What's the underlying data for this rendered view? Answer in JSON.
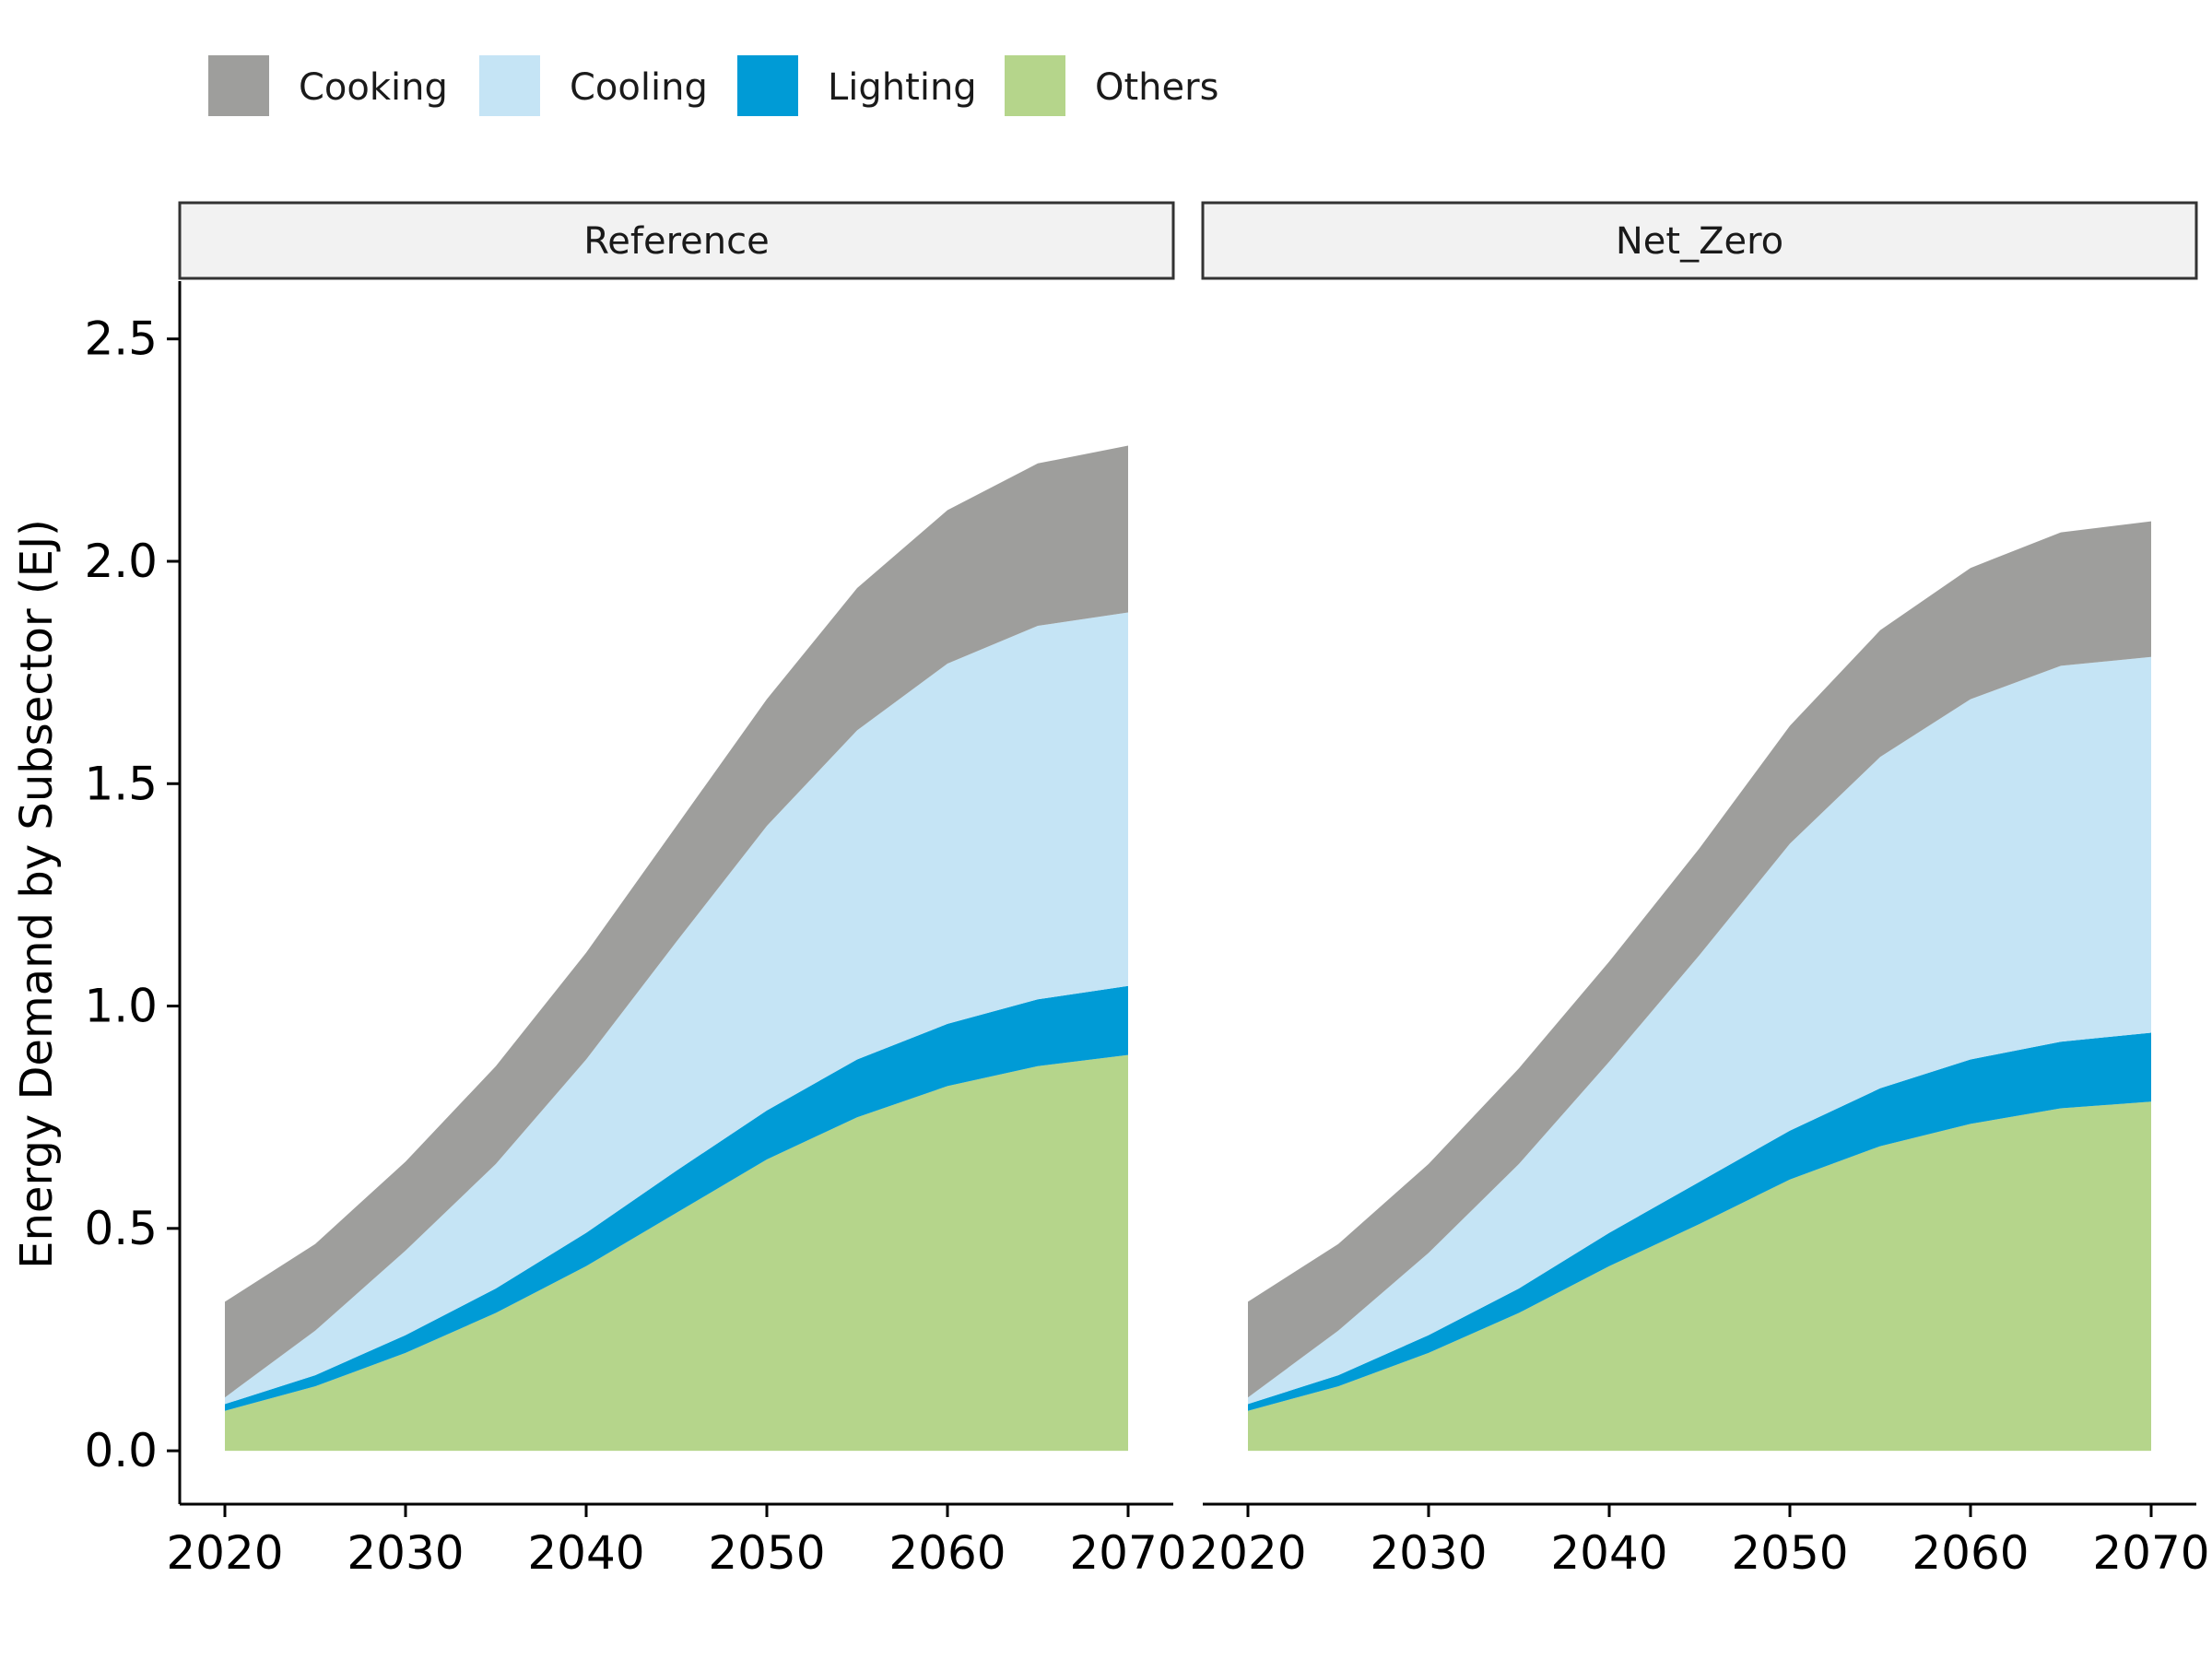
{
  "chart_data": {
    "type": "area",
    "stacked": true,
    "facets": [
      "Reference",
      "Net_Zero"
    ],
    "ylabel": "Energy Demand by Subsector (EJ)",
    "xlabel": "",
    "xlim": [
      2017.5,
      2072.5
    ],
    "ylim": [
      -0.12,
      2.63
    ],
    "x_ticks": [
      2020,
      2030,
      2040,
      2050,
      2060,
      2070
    ],
    "y_ticks": [
      0.0,
      0.5,
      1.0,
      1.5,
      2.0,
      2.5
    ],
    "y_tick_labels": [
      "0.0",
      "0.5",
      "1.0",
      "1.5",
      "2.0",
      "2.5"
    ],
    "grid": false,
    "legend_position": "top-left",
    "legend": [
      "Cooking",
      "Cooling",
      "Lighting",
      "Others"
    ],
    "colors": {
      "Cooking": "#9e9e9c",
      "Cooling": "#c5e4f5",
      "Lighting": "#009bd6",
      "Others": "#b5d58b"
    },
    "x": [
      2020,
      2025,
      2030,
      2035,
      2040,
      2045,
      2050,
      2055,
      2060,
      2065,
      2070
    ],
    "panels": [
      {
        "facet": "Reference",
        "series": [
          {
            "name": "Others",
            "values": [
              0.09,
              0.145,
              0.22,
              0.31,
              0.415,
              0.535,
              0.655,
              0.75,
              0.82,
              0.865,
              0.89
            ]
          },
          {
            "name": "Lighting",
            "values": [
              0.015,
              0.025,
              0.04,
              0.055,
              0.075,
              0.095,
              0.11,
              0.13,
              0.14,
              0.15,
              0.155
            ]
          },
          {
            "name": "Cooling",
            "values": [
              0.015,
              0.1,
              0.19,
              0.28,
              0.39,
              0.515,
              0.64,
              0.74,
              0.81,
              0.84,
              0.84
            ]
          },
          {
            "name": "Cooking",
            "values": [
              0.215,
              0.195,
              0.2,
              0.22,
              0.24,
              0.26,
              0.285,
              0.32,
              0.345,
              0.365,
              0.375
            ]
          }
        ]
      },
      {
        "facet": "Net_Zero",
        "series": [
          {
            "name": "Others",
            "values": [
              0.09,
              0.145,
              0.22,
              0.31,
              0.415,
              0.51,
              0.61,
              0.685,
              0.735,
              0.77,
              0.785
            ]
          },
          {
            "name": "Lighting",
            "values": [
              0.015,
              0.025,
              0.04,
              0.055,
              0.075,
              0.095,
              0.11,
              0.13,
              0.145,
              0.15,
              0.155
            ]
          },
          {
            "name": "Cooling",
            "values": [
              0.015,
              0.1,
              0.185,
              0.28,
              0.385,
              0.51,
              0.645,
              0.745,
              0.81,
              0.845,
              0.845
            ]
          },
          {
            "name": "Cooking",
            "values": [
              0.215,
              0.195,
              0.2,
              0.215,
              0.225,
              0.24,
              0.265,
              0.285,
              0.295,
              0.3,
              0.305
            ]
          }
        ]
      }
    ]
  }
}
